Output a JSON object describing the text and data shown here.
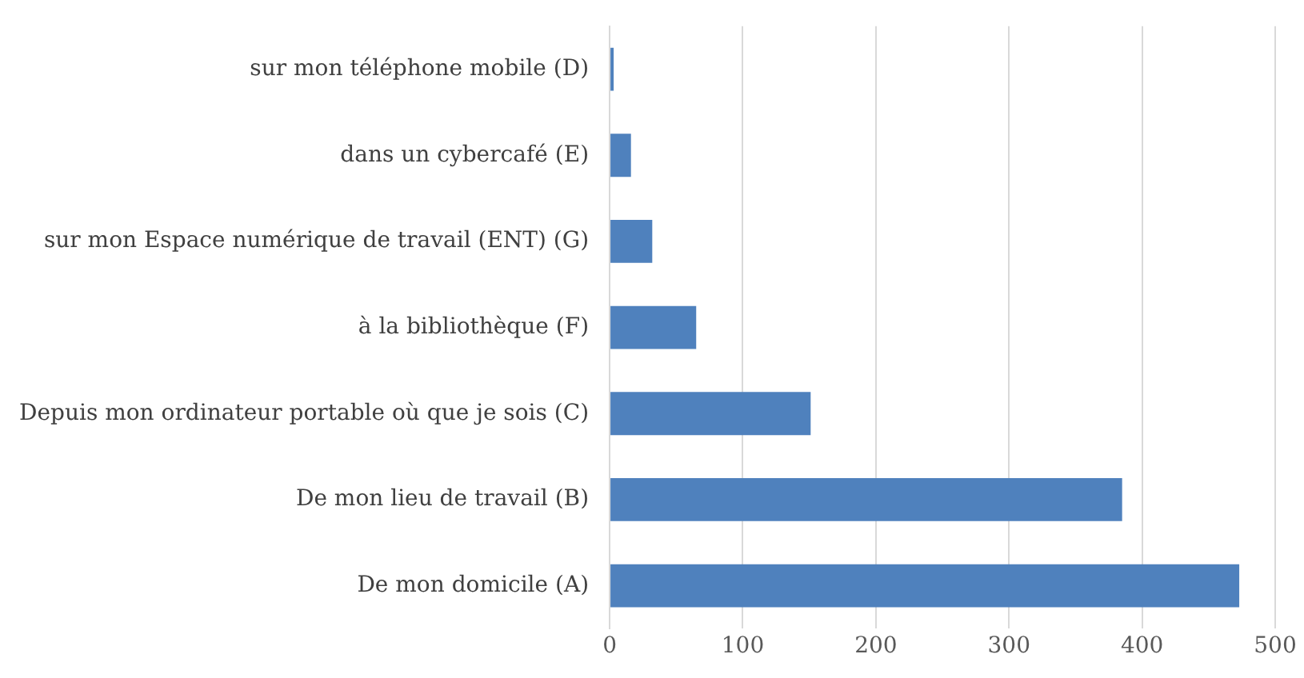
{
  "chart_data": {
    "type": "bar",
    "orientation": "horizontal",
    "categories": [
      "sur mon téléphone mobile (D)",
      "dans un cybercafé (E)",
      "sur mon Espace numérique de travail (ENT) (G)",
      "à la bibliothèque (F)",
      "Depuis mon ordinateur portable où que je sois (C)",
      "De mon lieu de travail (B)",
      "De mon domicile (A)"
    ],
    "values": [
      3,
      16,
      32,
      65,
      151,
      385,
      473
    ],
    "color": "#4f81bd",
    "xlim": [
      0,
      500
    ],
    "xticks": [
      0,
      100,
      200,
      300,
      400,
      500
    ],
    "grid": "x"
  }
}
